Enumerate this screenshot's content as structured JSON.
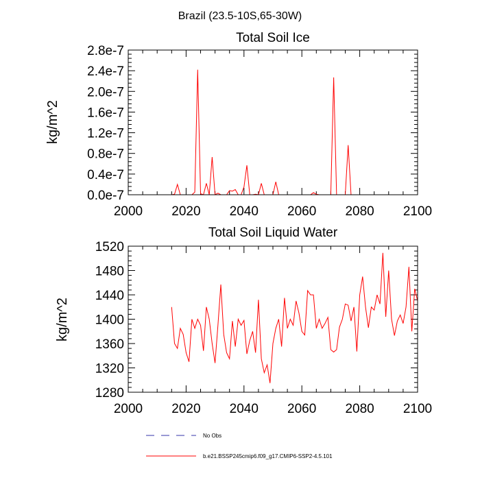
{
  "figure_title": "Brazil (23.5-10S,65-30W)",
  "chart_data": [
    {
      "type": "line",
      "title": "Total Soil Ice",
      "xlabel": "",
      "ylabel": "kg/m^2",
      "xlim": [
        2000,
        2100
      ],
      "ylim": [
        0,
        2.8e-07
      ],
      "xticks": [
        2000,
        2020,
        2040,
        2060,
        2080,
        2100
      ],
      "xtick_labels": [
        "2000",
        "2020",
        "2040",
        "2060",
        "2080",
        "2100"
      ],
      "yticks": [
        0,
        4e-08,
        8e-08,
        1.2e-07,
        1.6e-07,
        2e-07,
        2.4e-07,
        2.8e-07
      ],
      "ytick_labels": [
        "0.0e-7",
        "0.4e-7",
        "0.8e-7",
        "1.2e-7",
        "1.6e-7",
        "2.0e-7",
        "2.4e-7",
        "2.8e-7"
      ],
      "series": [
        {
          "name": "b.e21.BSSP245cmip6.f09_g17.CMIP6-SSP2-4.5.101",
          "color": "#ff0000",
          "x": [
            2015,
            2016,
            2017,
            2018,
            2019,
            2020,
            2021,
            2022,
            2023,
            2024,
            2025,
            2026,
            2027,
            2028,
            2029,
            2030,
            2031,
            2032,
            2033,
            2034,
            2035,
            2036,
            2037,
            2038,
            2039,
            2040,
            2041,
            2042,
            2043,
            2044,
            2045,
            2046,
            2047,
            2048,
            2049,
            2050,
            2051,
            2052,
            2053,
            2054,
            2055,
            2056,
            2057,
            2058,
            2059,
            2060,
            2061,
            2062,
            2063,
            2064,
            2065,
            2066,
            2067,
            2068,
            2069,
            2070,
            2071,
            2072,
            2073,
            2074,
            2075,
            2076,
            2077,
            2078,
            2079,
            2080,
            2081,
            2082,
            2083,
            2084,
            2085,
            2086,
            2087,
            2088,
            2089,
            2090,
            2091,
            2092,
            2093,
            2094,
            2095,
            2096,
            2097,
            2098,
            2099,
            2100
          ],
          "values": [
            0,
            1e-09,
            2e-08,
            0,
            0,
            0,
            0,
            0,
            5e-09,
            2.42e-07,
            2e-09,
            0,
            2.2e-08,
            0,
            7.3e-08,
            0,
            3e-09,
            0,
            0,
            0,
            8e-09,
            7e-09,
            1e-08,
            0,
            0,
            1.5e-08,
            5.7e-08,
            0,
            0,
            1e-09,
            0,
            2.2e-08,
            0,
            0,
            0,
            0,
            2.5e-08,
            0,
            0,
            0,
            0,
            0,
            0,
            0,
            0,
            0,
            0,
            0,
            0,
            4e-09,
            1e-09,
            0,
            0,
            0,
            0,
            0,
            2.27e-07,
            0,
            0,
            0,
            0,
            9.6e-08,
            0,
            0,
            0,
            0,
            0,
            0,
            0,
            0,
            0,
            0,
            0,
            0,
            0,
            0,
            0,
            0,
            0,
            0,
            0,
            0,
            0,
            0,
            0,
            0
          ]
        }
      ]
    },
    {
      "type": "line",
      "title": "Total Soil Liquid Water",
      "xlabel": "",
      "ylabel": "kg/m^2",
      "xlim": [
        2000,
        2100
      ],
      "ylim": [
        1280,
        1520
      ],
      "xticks": [
        2000,
        2020,
        2040,
        2060,
        2080,
        2100
      ],
      "xtick_labels": [
        "2000",
        "2020",
        "2040",
        "2060",
        "2080",
        "2100"
      ],
      "yticks": [
        1280,
        1320,
        1360,
        1400,
        1440,
        1480,
        1520
      ],
      "ytick_labels": [
        "1280",
        "1320",
        "1360",
        "1400",
        "1440",
        "1480",
        "1520"
      ],
      "series": [
        {
          "name": "b.e21.BSSP245cmip6.f09_g17.CMIP6-SSP2-4.5.101",
          "color": "#ff0000",
          "x": [
            2015,
            2016,
            2017,
            2018,
            2019,
            2020,
            2021,
            2022,
            2023,
            2024,
            2025,
            2026,
            2027,
            2028,
            2029,
            2030,
            2031,
            2032,
            2033,
            2034,
            2035,
            2036,
            2037,
            2038,
            2039,
            2040,
            2041,
            2042,
            2043,
            2044,
            2045,
            2046,
            2047,
            2048,
            2049,
            2050,
            2051,
            2052,
            2053,
            2054,
            2055,
            2056,
            2057,
            2058,
            2059,
            2060,
            2061,
            2062,
            2063,
            2064,
            2065,
            2066,
            2067,
            2068,
            2069,
            2070,
            2071,
            2072,
            2073,
            2074,
            2075,
            2076,
            2077,
            2078,
            2079,
            2080,
            2081,
            2082,
            2083,
            2084,
            2085,
            2086,
            2087,
            2088,
            2089,
            2090,
            2091,
            2092,
            2093,
            2094,
            2095,
            2096,
            2097,
            2098,
            2099,
            2100
          ],
          "values": [
            1420,
            1360,
            1352,
            1385,
            1375,
            1345,
            1330,
            1400,
            1385,
            1400,
            1390,
            1348,
            1420,
            1400,
            1360,
            1328,
            1390,
            1457,
            1375,
            1345,
            1335,
            1397,
            1355,
            1400,
            1390,
            1398,
            1343,
            1365,
            1380,
            1345,
            1432,
            1335,
            1312,
            1325,
            1295,
            1360,
            1385,
            1400,
            1355,
            1435,
            1385,
            1400,
            1390,
            1430,
            1410,
            1380,
            1374,
            1447,
            1440,
            1440,
            1385,
            1400,
            1385,
            1393,
            1403,
            1350,
            1346,
            1350,
            1387,
            1400,
            1425,
            1423,
            1397,
            1420,
            1347,
            1440,
            1470,
            1420,
            1386,
            1420,
            1415,
            1440,
            1425,
            1509,
            1404,
            1480,
            1400,
            1373,
            1397,
            1407,
            1393,
            1420,
            1486,
            1380,
            1450,
            1430
          ]
        }
      ]
    }
  ],
  "legend": [
    {
      "label": "No Obs",
      "color": "#3333aa",
      "style": "dashed"
    },
    {
      "label": "b.e21.BSSP245cmip6.f09_g17.CMIP6-SSP2-4.5.101",
      "color": "#ff0000",
      "style": "solid"
    }
  ]
}
